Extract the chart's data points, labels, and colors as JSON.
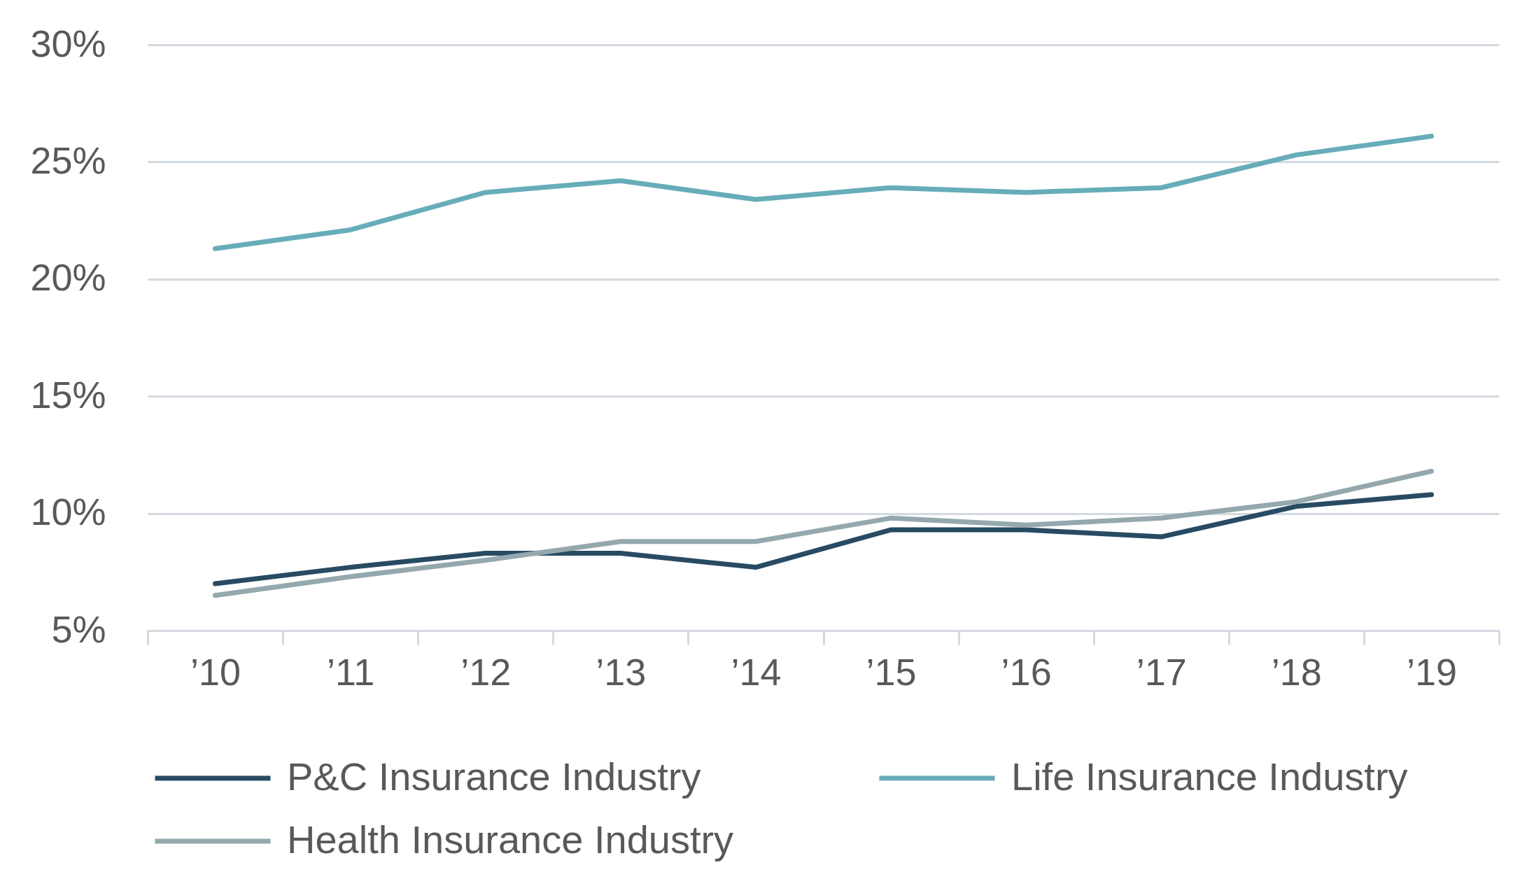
{
  "chart_data": {
    "type": "line",
    "categories": [
      "’10",
      "’11",
      "’12",
      "’13",
      "’14",
      "’15",
      "’16",
      "’17",
      "’18",
      "’19"
    ],
    "series": [
      {
        "name": "P&C Insurance Industry",
        "color": "#284b63",
        "values": [
          7.0,
          7.7,
          8.3,
          8.3,
          7.7,
          9.3,
          9.3,
          9.0,
          10.3,
          10.8
        ]
      },
      {
        "name": "Life Insurance Industry",
        "color": "#67adb9",
        "values": [
          21.3,
          22.1,
          23.7,
          24.2,
          23.4,
          23.9,
          23.7,
          23.9,
          25.3,
          26.1
        ]
      },
      {
        "name": "Health Insurance Industry",
        "color": "#94a8ad",
        "values": [
          6.5,
          7.3,
          8.0,
          8.8,
          8.8,
          9.8,
          9.5,
          9.8,
          10.5,
          11.8
        ]
      }
    ],
    "ylim": [
      5,
      30
    ],
    "yticks": [
      {
        "value": 5,
        "label": "5%"
      },
      {
        "value": 10,
        "label": "10%"
      },
      {
        "value": 15,
        "label": "15%"
      },
      {
        "value": 20,
        "label": "20%"
      },
      {
        "value": 25,
        "label": "25%"
      },
      {
        "value": 30,
        "label": "30%"
      }
    ],
    "grid": "y",
    "legend": "bottom"
  }
}
